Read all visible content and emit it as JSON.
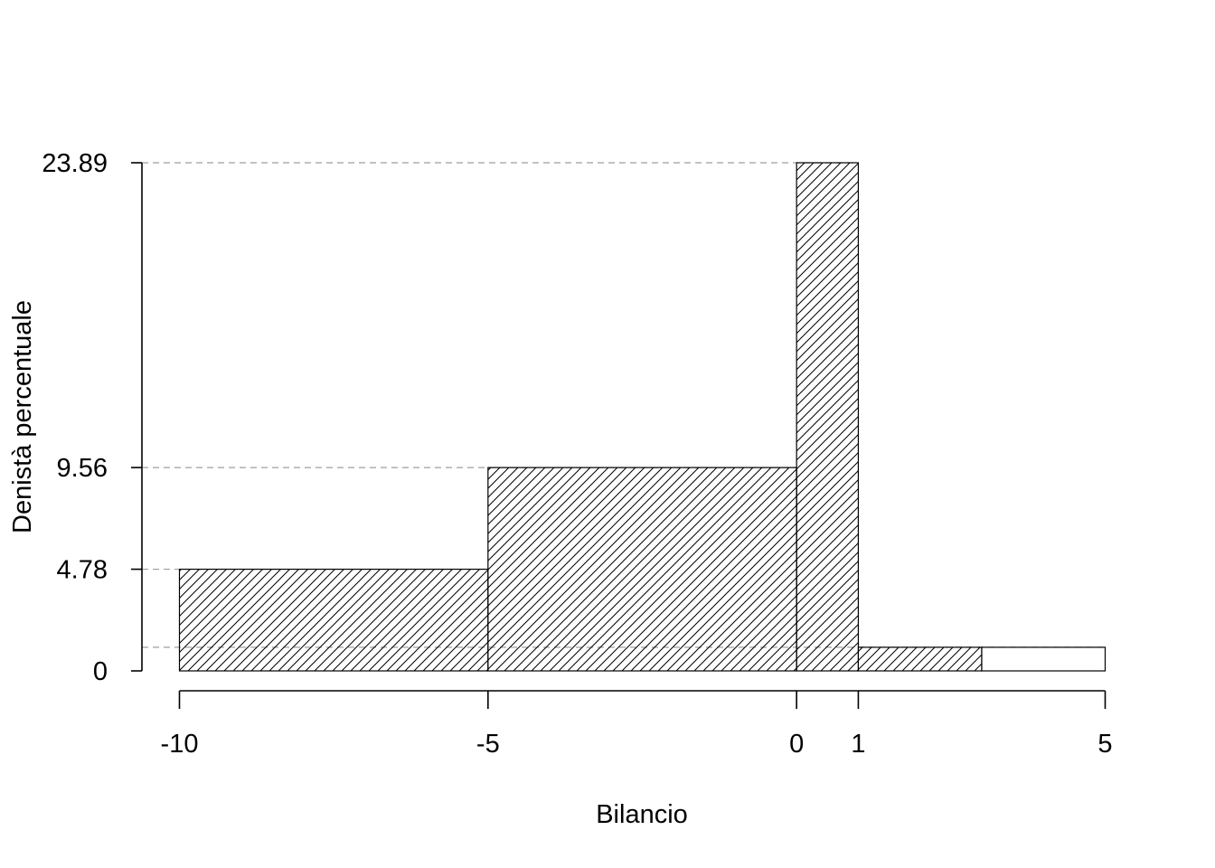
{
  "chart_data": {
    "type": "bar",
    "subtype": "histogram",
    "xlabel": "Bilancio",
    "ylabel": "Denistà percentuale",
    "bins": [
      {
        "from": -10,
        "to": -5,
        "density": 4.78,
        "hatched": true
      },
      {
        "from": -5,
        "to": 0,
        "density": 9.56,
        "hatched": true
      },
      {
        "from": 0,
        "to": 1,
        "density": 23.89,
        "hatched": true
      },
      {
        "from": 1,
        "to": 3,
        "density": 1.11,
        "hatched": true
      },
      {
        "from": 3,
        "to": 5,
        "density": 1.11,
        "hatched": false
      }
    ],
    "x_ticks": [
      {
        "value": -10,
        "label": "-10"
      },
      {
        "value": -5,
        "label": "-5"
      },
      {
        "value": 0,
        "label": "0"
      },
      {
        "value": 1,
        "label": "1"
      },
      {
        "value": 5,
        "label": "5"
      }
    ],
    "y_ticks": [
      {
        "value": 0,
        "label": "0"
      },
      {
        "value": 4.78,
        "label": "4.78"
      },
      {
        "value": 9.56,
        "label": "9.56"
      },
      {
        "value": 23.89,
        "label": "23.89"
      }
    ],
    "reference_lines_y": [
      1.11,
      4.78,
      9.56,
      23.89
    ],
    "xlim": [
      -10,
      5
    ],
    "ylim": [
      0,
      23.89
    ],
    "grid": false,
    "legend": "none",
    "colors": {
      "outline": "#000000",
      "hatch": "#000000",
      "reference_line": "#9e9e9e",
      "fill": "#ffffff"
    }
  }
}
